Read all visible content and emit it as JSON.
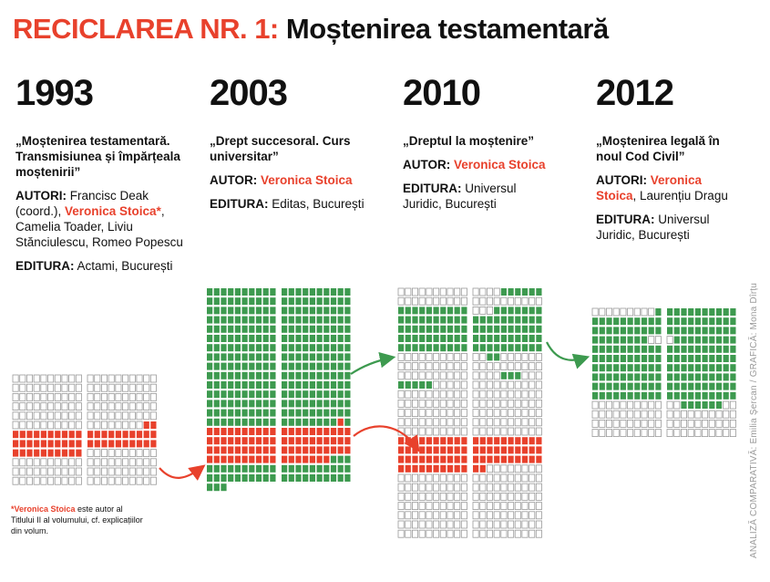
{
  "title": {
    "prefix": "RECICLAREA NR. 1:",
    "main": "Moștenirea testamentară"
  },
  "columns": [
    {
      "year": "1993",
      "book": "„Moștenirea testamentară. Transmisiunea și împărțeala moștenirii”",
      "author_label": "AUTORI:",
      "author_pre": "Francisc Deak (coord.), ",
      "author_red": "Veronica Stoica*",
      "author_post": ", Camelia Toader, Liviu Stănciulescu, Romeo Popescu",
      "editura_label": "EDITURA:",
      "editura": "Actami, București"
    },
    {
      "year": "2003",
      "book": "„Drept succesoral. Curs universitar”",
      "author_label": "AUTOR:",
      "author_pre": "",
      "author_red": "Veronica Stoica",
      "author_post": "",
      "editura_label": "EDITURA:",
      "editura": "Editas, București"
    },
    {
      "year": "2010",
      "book": "„Dreptul la moștenire”",
      "author_label": "AUTOR:",
      "author_pre": "",
      "author_red": "Veronica Stoica",
      "author_post": "",
      "editura_label": "EDITURA:",
      "editura": "Universul Juridic, București"
    },
    {
      "year": "2012",
      "book": "„Moștenirea legală în noul Cod Civil”",
      "author_label": "AUTORI:",
      "author_pre": "",
      "author_red": "Veronica Stoica",
      "author_post": ", Laurențiu Dragu",
      "editura_label": "EDITURA:",
      "editura": "Universul Juridic, București"
    }
  ],
  "footnote": {
    "red": "*Veronica Stoica",
    "text": " este autor al Titlului II al volumului, cf. explicațiilor din volum."
  },
  "credit": "ANALIZĂ COMPARATIVĂ: Emilia Șercan / GRAFICĂ: Mona Dîrțu",
  "colors": {
    "red": "#e8412c",
    "green": "#3d9a4f",
    "empty": "#ffffff",
    "outline": "#9a9a9a"
  }
}
